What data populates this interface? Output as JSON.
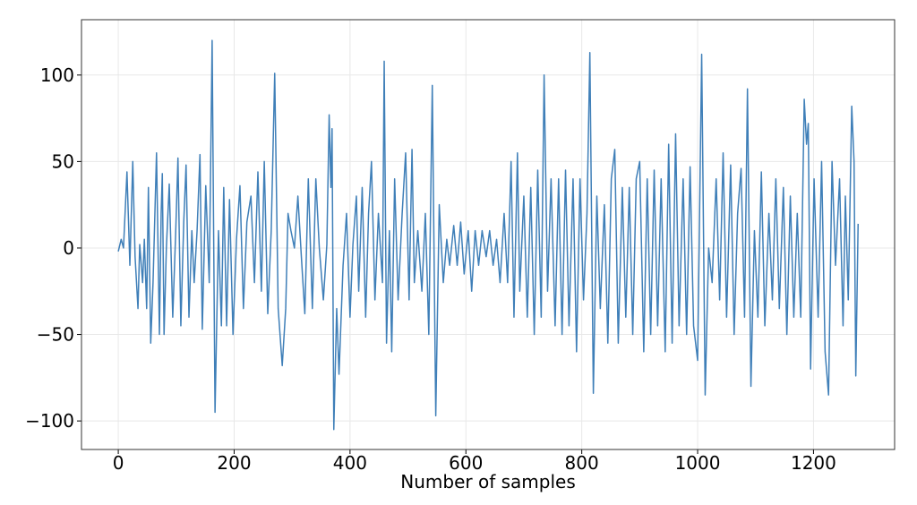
{
  "chart_data": {
    "type": "line",
    "x_label": "Number of samples",
    "xlim": [
      -63.5,
      1340
    ],
    "ylim": [
      -116.5,
      132
    ],
    "xticks": [
      0,
      200,
      400,
      600,
      800,
      1000,
      1200
    ],
    "yticks": [
      {
        "value": -100,
        "label": "−100"
      },
      {
        "value": -50,
        "label": "−50"
      },
      0,
      50,
      100
    ],
    "grid": true,
    "x": [
      0,
      5,
      9,
      15,
      20,
      25,
      29,
      34,
      37,
      42,
      45,
      49,
      52,
      56,
      60,
      66,
      71,
      74,
      76,
      79,
      83,
      88,
      94,
      99,
      103,
      108,
      113,
      117,
      122,
      127,
      131,
      136,
      141,
      145,
      151,
      157,
      162,
      167,
      173,
      178,
      182,
      187,
      192,
      198,
      204,
      210,
      216,
      222,
      229,
      235,
      241,
      247,
      252,
      258,
      264,
      270,
      276,
      283,
      289,
      293,
      298,
      304,
      310,
      316,
      322,
      328,
      335,
      341,
      347,
      354,
      360,
      364,
      367,
      369,
      372,
      377,
      381,
      388,
      394,
      400,
      405,
      411,
      415,
      421,
      427,
      432,
      437,
      443,
      449,
      456,
      459,
      463,
      468,
      472,
      477,
      483,
      490,
      496,
      502,
      507,
      511,
      517,
      524,
      530,
      536,
      542,
      548,
      554,
      561,
      567,
      572,
      579,
      585,
      591,
      597,
      604,
      610,
      616,
      622,
      628,
      635,
      641,
      647,
      653,
      659,
      666,
      672,
      678,
      683,
      689,
      693,
      700,
      706,
      712,
      718,
      724,
      730,
      735,
      741,
      747,
      754,
      760,
      766,
      772,
      778,
      785,
      791,
      797,
      803,
      809,
      814,
      820,
      826,
      832,
      839,
      845,
      851,
      857,
      863,
      870,
      876,
      882,
      888,
      894,
      900,
      907,
      913,
      919,
      925,
      931,
      937,
      944,
      950,
      956,
      962,
      968,
      975,
      981,
      987,
      993,
      1000,
      1007,
      1013,
      1019,
      1025,
      1032,
      1038,
      1044,
      1050,
      1057,
      1063,
      1069,
      1075,
      1081,
      1086,
      1092,
      1098,
      1104,
      1110,
      1116,
      1123,
      1129,
      1135,
      1141,
      1148,
      1154,
      1160,
      1166,
      1172,
      1178,
      1184,
      1188,
      1191,
      1195,
      1201,
      1208,
      1214,
      1220,
      1226,
      1232,
      1238,
      1245,
      1251,
      1255,
      1260,
      1266,
      1270,
      1273,
      1277
    ],
    "series": [
      {
        "color": "#3f7fb8",
        "values": [
          -2,
          5,
          0,
          44,
          -10,
          50,
          -5,
          -35,
          2,
          -20,
          5,
          -35,
          35,
          -55,
          -20,
          55,
          -50,
          20,
          43,
          -50,
          0,
          37,
          -40,
          8,
          52,
          -45,
          15,
          48,
          -40,
          10,
          -20,
          10,
          54,
          -47,
          36,
          -20,
          120,
          -95,
          10,
          -45,
          35,
          -45,
          28,
          -50,
          5,
          36,
          -35,
          15,
          30,
          -20,
          44,
          -25,
          50,
          -38,
          10,
          101,
          -35,
          -68,
          -35,
          20,
          10,
          0,
          30,
          -5,
          -38,
          40,
          -35,
          40,
          0,
          -30,
          2,
          77,
          35,
          69,
          -105,
          -35,
          -73,
          -10,
          20,
          -40,
          2,
          30,
          -25,
          35,
          -40,
          20,
          50,
          -30,
          20,
          -20,
          108,
          -55,
          10,
          -60,
          40,
          -30,
          20,
          55,
          -30,
          57,
          -20,
          10,
          -25,
          20,
          -50,
          94,
          -97,
          25,
          -20,
          5,
          -10,
          13,
          -10,
          15,
          -15,
          10,
          -25,
          10,
          -10,
          10,
          -5,
          10,
          -10,
          5,
          -20,
          20,
          -20,
          50,
          -40,
          55,
          -25,
          30,
          -40,
          35,
          -50,
          45,
          -40,
          100,
          -25,
          40,
          -45,
          40,
          -50,
          45,
          -45,
          40,
          -60,
          40,
          -30,
          20,
          113,
          -84,
          30,
          -35,
          25,
          -55,
          40,
          57,
          -55,
          35,
          -40,
          35,
          -50,
          40,
          50,
          -60,
          40,
          -50,
          45,
          -45,
          40,
          -60,
          60,
          -55,
          66,
          -45,
          40,
          -50,
          47,
          -45,
          -65,
          112,
          -85,
          0,
          -20,
          40,
          -30,
          55,
          -40,
          48,
          -50,
          20,
          46,
          -40,
          92,
          -80,
          10,
          -40,
          44,
          -45,
          20,
          -30,
          40,
          -35,
          35,
          -50,
          30,
          -40,
          20,
          -40,
          86,
          60,
          72,
          -70,
          40,
          -40,
          50,
          -60,
          -85,
          50,
          -10,
          40,
          -45,
          30,
          -30,
          82,
          50,
          -74,
          14
        ]
      }
    ]
  }
}
